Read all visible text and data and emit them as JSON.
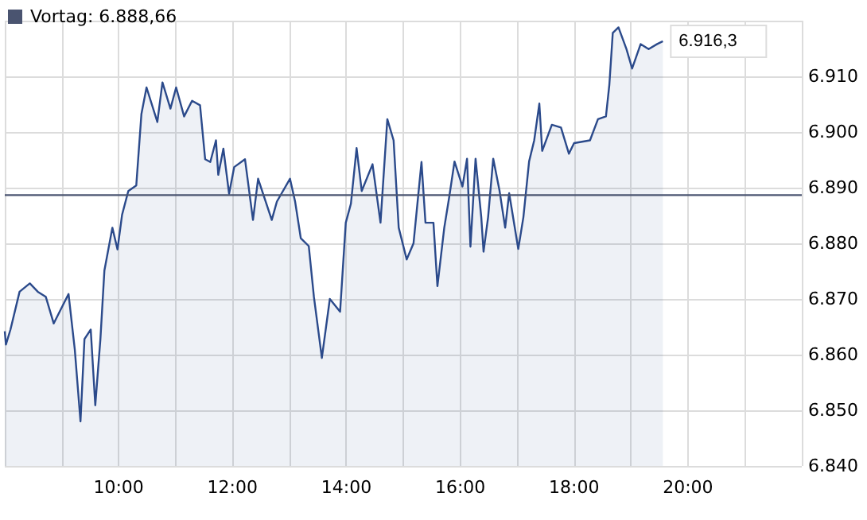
{
  "chart_data": {
    "type": "area",
    "x": [
      8.0,
      8.02,
      8.1,
      8.26,
      8.44,
      8.58,
      8.72,
      8.86,
      9.12,
      9.23,
      9.33,
      9.4,
      9.51,
      9.59,
      9.68,
      9.75,
      9.89,
      9.98,
      10.06,
      10.17,
      10.31,
      10.4,
      10.49,
      10.68,
      10.77,
      10.91,
      11.01,
      11.15,
      11.29,
      11.43,
      11.52,
      11.61,
      11.71,
      11.75,
      11.84,
      11.94,
      12.03,
      12.22,
      12.36,
      12.45,
      12.69,
      12.78,
      13.01,
      13.1,
      13.2,
      13.34,
      13.43,
      13.57,
      13.71,
      13.89,
      13.99,
      14.08,
      14.18,
      14.27,
      14.46,
      14.6,
      14.72,
      14.83,
      14.92,
      15.06,
      15.18,
      15.32,
      15.39,
      15.53,
      15.6,
      15.72,
      15.81,
      15.9,
      16.04,
      16.12,
      16.18,
      16.27,
      16.37,
      16.41,
      16.49,
      16.58,
      16.69,
      16.79,
      16.86,
      17.02,
      17.11,
      17.21,
      17.3,
      17.39,
      17.44,
      17.61,
      17.77,
      17.91,
      18.0,
      18.28,
      18.42,
      18.56,
      18.62,
      18.68,
      18.78,
      18.92,
      19.02,
      19.17,
      19.31,
      19.46,
      19.56
    ],
    "series": [
      {
        "color": "#2b4a8b",
        "values": [
          6864.2,
          6861.8,
          6864.5,
          6871.3,
          6872.8,
          6871.3,
          6870.4,
          6865.6,
          6870.9,
          6860.9,
          6848,
          6862.8,
          6864.5,
          6850.9,
          6862.8,
          6875.1,
          6882.8,
          6878.9,
          6885.1,
          6889.4,
          6890.4,
          6903.2,
          6908,
          6901.8,
          6908.9,
          6904.2,
          6908,
          6902.8,
          6905.6,
          6904.8,
          6895.1,
          6894.6,
          6898.5,
          6892.3,
          6897,
          6888.9,
          6893.7,
          6895.1,
          6884.2,
          6891.6,
          6884.2,
          6887.5,
          6891.6,
          6887.5,
          6880.9,
          6879.5,
          6870.4,
          6859.4,
          6870,
          6867.7,
          6883.7,
          6887.1,
          6897.1,
          6889.4,
          6894.2,
          6883.7,
          6902.3,
          6898.5,
          6882.8,
          6877.1,
          6880,
          6894.6,
          6883.7,
          6883.7,
          6872.3,
          6882.8,
          6888.5,
          6894.7,
          6890.2,
          6895.2,
          6879.4,
          6895.2,
          6884.7,
          6878.5,
          6884.7,
          6895.2,
          6889.5,
          6882.8,
          6889,
          6879,
          6884.7,
          6894.7,
          6898.5,
          6905.1,
          6896.6,
          6901.3,
          6900.8,
          6896.1,
          6898,
          6898.5,
          6902.3,
          6902.8,
          6908.5,
          6917.8,
          6918.8,
          6914.9,
          6911.4,
          6915.8,
          6914.9,
          6915.8,
          6916.3
        ]
      }
    ],
    "xlim": [
      8,
      22
    ],
    "xticks": [
      {
        "value": 8,
        "label": null
      },
      {
        "value": 9,
        "label": null
      },
      {
        "value": 10,
        "label": "10:00"
      },
      {
        "value": 11,
        "label": null
      },
      {
        "value": 12,
        "label": "12:00"
      },
      {
        "value": 13,
        "label": null
      },
      {
        "value": 14,
        "label": "14:00"
      },
      {
        "value": 15,
        "label": null
      },
      {
        "value": 16,
        "label": "16:00"
      },
      {
        "value": 17,
        "label": null
      },
      {
        "value": 18,
        "label": "18:00"
      },
      {
        "value": 19,
        "label": null
      },
      {
        "value": 20,
        "label": "20:00"
      },
      {
        "value": 21,
        "label": null
      },
      {
        "value": 22,
        "label": null
      }
    ],
    "ylim": [
      6840,
      6920
    ],
    "yticks": [
      {
        "value": 6840,
        "label": "6.840"
      },
      {
        "value": 6850,
        "label": "6.850"
      },
      {
        "value": 6860,
        "label": "6.860"
      },
      {
        "value": 6870,
        "label": "6.870"
      },
      {
        "value": 6880,
        "label": "6.880"
      },
      {
        "value": 6890,
        "label": "6.890"
      },
      {
        "value": 6900,
        "label": "6.900"
      },
      {
        "value": 6910,
        "label": "6.910"
      },
      {
        "value": 6920,
        "label": null
      }
    ],
    "ref_lines": [
      {
        "axis": "y",
        "value": 6888.66,
        "label": "Vortag: 6.888,66",
        "color": "#4a5470"
      }
    ],
    "annotations": [
      {
        "text": "6.916,3",
        "x": 19.56,
        "y": 6916.3
      }
    ],
    "grid": true,
    "legend": "top left",
    "marker": "none",
    "line_style": "solid"
  }
}
